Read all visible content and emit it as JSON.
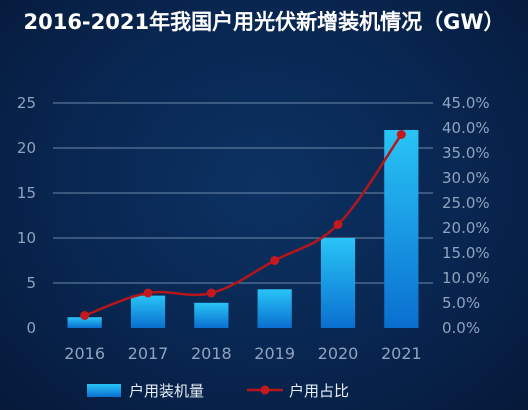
{
  "chart_data": {
    "type": "bar",
    "title": "2016-2021年我国户用光伏新增装机情况（GW）",
    "categories": [
      "2016",
      "2017",
      "2018",
      "2019",
      "2020",
      "2021"
    ],
    "series": [
      {
        "name": "户用装机量",
        "type": "bar",
        "axis": "left",
        "values": [
          1.2,
          3.6,
          2.8,
          4.3,
          10.0,
          22.0
        ]
      },
      {
        "name": "户用占比",
        "type": "line",
        "axis": "right",
        "values": [
          2.5,
          7.0,
          7.0,
          13.5,
          20.7,
          38.7
        ]
      }
    ],
    "y_left": {
      "min": 0,
      "max": 25,
      "ticks": [
        "0",
        "5",
        "10",
        "15",
        "20",
        "25"
      ]
    },
    "y_right": {
      "min": 0,
      "max": 45,
      "ticks": [
        "0.0%",
        "5.0%",
        "10.0%",
        "15.0%",
        "20.0%",
        "25.0%",
        "30.0%",
        "35.0%",
        "40.0%",
        "45.0%"
      ]
    },
    "grid": true,
    "legend_position": "bottom",
    "colors": {
      "bar_top": "#29c4f6",
      "bar_bottom": "#0a6fd0",
      "line": "#b5161b",
      "marker": "#c41a1f",
      "grid": "#8fa8c8",
      "tick_text": "#8fa3bf",
      "title_text": "#ffffff"
    }
  }
}
